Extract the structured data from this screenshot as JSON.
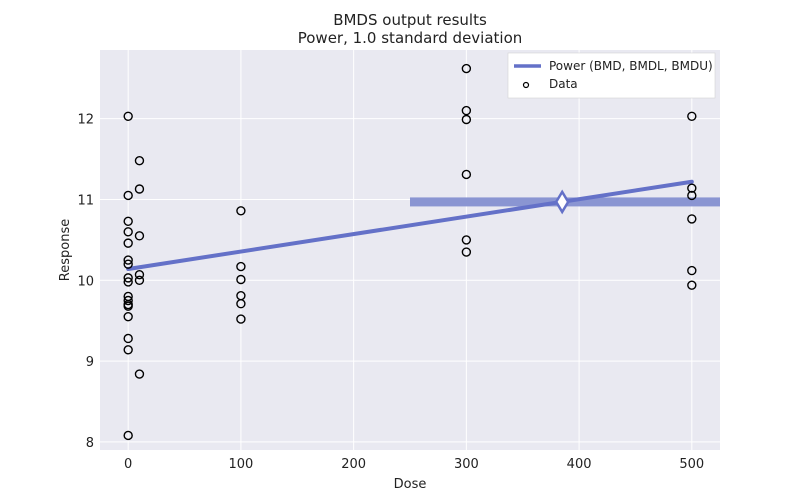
{
  "chart_data": {
    "type": "scatter",
    "title": "BMDS output results",
    "subtitle": "Power, 1.0 standard deviation",
    "xlabel": "Dose",
    "ylabel": "Response",
    "xlim": [
      -25,
      525
    ],
    "ylim": [
      7.9,
      12.85
    ],
    "xticks": [
      0,
      100,
      200,
      300,
      400,
      500
    ],
    "yticks": [
      8,
      9,
      10,
      11,
      12
    ],
    "grid": true,
    "legend_position": "top-right",
    "colors": {
      "model": "#6471c8",
      "bmd_band": "#8a95d2",
      "background": "#e9e9f1",
      "grid": "#ffffff",
      "points": "#000000"
    },
    "legend": [
      {
        "label": "Power (BMD, BMDL, BMDU)",
        "kind": "line"
      },
      {
        "label": "Data",
        "kind": "marker"
      }
    ],
    "data_series": {
      "name": "Data",
      "points": [
        {
          "x": 0,
          "y": 12.03
        },
        {
          "x": 0,
          "y": 11.05
        },
        {
          "x": 0,
          "y": 10.73
        },
        {
          "x": 0,
          "y": 10.6
        },
        {
          "x": 0,
          "y": 10.46
        },
        {
          "x": 0,
          "y": 10.25
        },
        {
          "x": 0,
          "y": 10.2
        },
        {
          "x": 0,
          "y": 10.03
        },
        {
          "x": 0,
          "y": 9.98
        },
        {
          "x": 0,
          "y": 9.8
        },
        {
          "x": 0,
          "y": 9.75
        },
        {
          "x": 0,
          "y": 9.7
        },
        {
          "x": 0,
          "y": 9.68
        },
        {
          "x": 0,
          "y": 9.55
        },
        {
          "x": 0,
          "y": 9.28
        },
        {
          "x": 0,
          "y": 9.14
        },
        {
          "x": 0,
          "y": 8.08
        },
        {
          "x": 10,
          "y": 11.48
        },
        {
          "x": 10,
          "y": 11.13
        },
        {
          "x": 10,
          "y": 10.55
        },
        {
          "x": 10,
          "y": 10.07
        },
        {
          "x": 10,
          "y": 10.0
        },
        {
          "x": 10,
          "y": 8.84
        },
        {
          "x": 100,
          "y": 10.86
        },
        {
          "x": 100,
          "y": 10.17
        },
        {
          "x": 100,
          "y": 10.01
        },
        {
          "x": 100,
          "y": 9.81
        },
        {
          "x": 100,
          "y": 9.71
        },
        {
          "x": 100,
          "y": 9.52
        },
        {
          "x": 300,
          "y": 12.62
        },
        {
          "x": 300,
          "y": 12.1
        },
        {
          "x": 300,
          "y": 11.99
        },
        {
          "x": 300,
          "y": 11.31
        },
        {
          "x": 300,
          "y": 10.5
        },
        {
          "x": 300,
          "y": 10.35
        },
        {
          "x": 500,
          "y": 12.03
        },
        {
          "x": 500,
          "y": 11.14
        },
        {
          "x": 500,
          "y": 11.05
        },
        {
          "x": 500,
          "y": 10.76
        },
        {
          "x": 500,
          "y": 10.12
        },
        {
          "x": 500,
          "y": 9.94
        }
      ]
    },
    "model_series": {
      "name": "Power",
      "x": [
        0,
        500
      ],
      "y": [
        10.14,
        11.22
      ]
    },
    "bmd": {
      "bmd": 385,
      "bmdl": 250,
      "bmdu": 525,
      "response": 10.97
    }
  }
}
